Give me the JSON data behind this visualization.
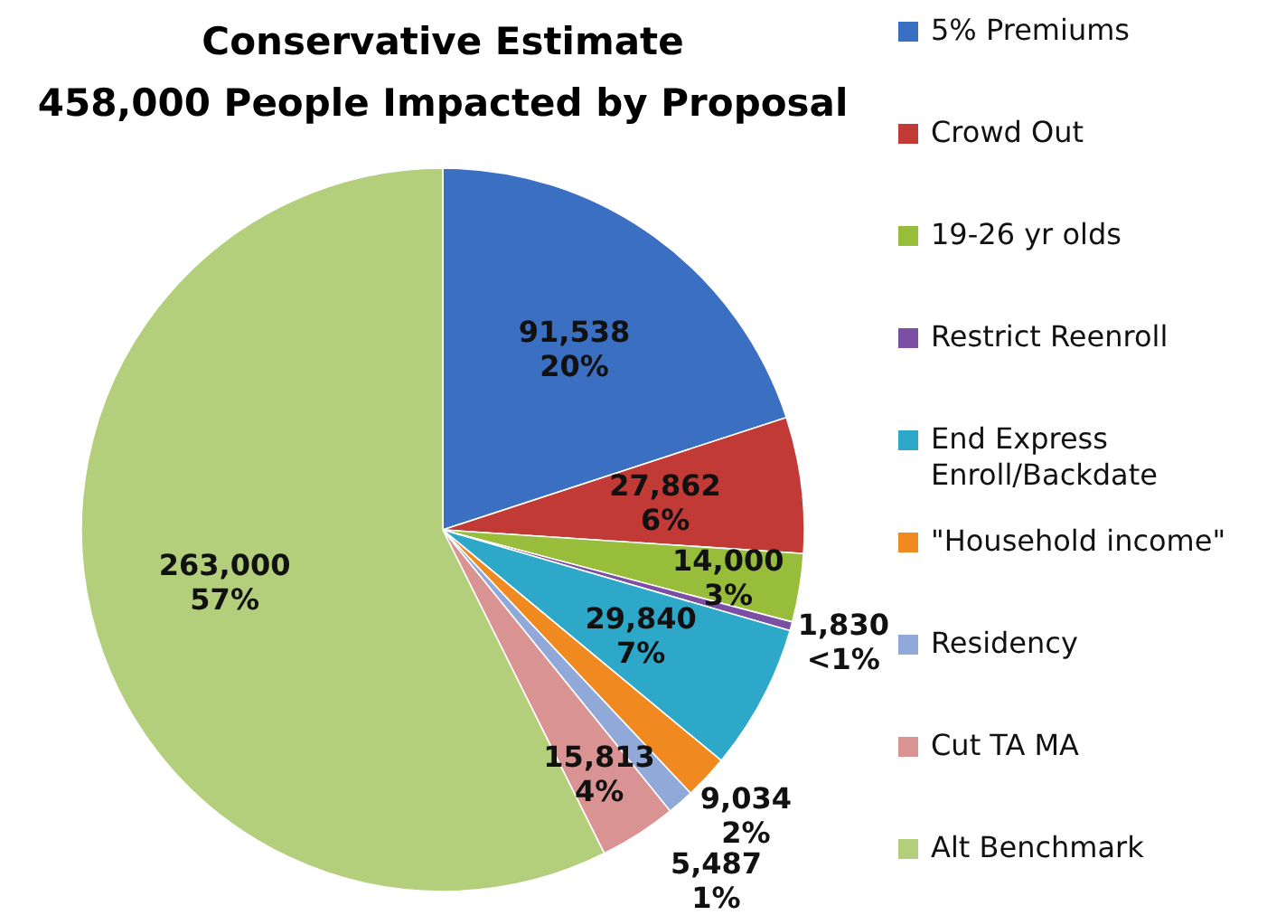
{
  "chart_data": {
    "type": "pie",
    "title": "Conservative Estimate",
    "subtitle": "458,000 People Impacted by Proposal",
    "categories": [
      "5% Premiums",
      "Crowd Out",
      "19-26 yr olds",
      "Restrict Reenroll",
      "End Express Enroll/Backdate",
      "\"Household income\"",
      "Residency",
      "Cut TA MA",
      "Alt Benchmark"
    ],
    "values": [
      91538,
      27862,
      14000,
      1830,
      29840,
      9034,
      5487,
      15813,
      263000
    ],
    "value_labels": [
      "91,538\n20%",
      "27,862\n6%",
      "14,000\n3%",
      "1,830\n<1%",
      "29,840\n7%",
      "9,034\n2%",
      "5,487\n1%",
      "15,813\n4%",
      "263,000\n57%"
    ],
    "colors": [
      "#3b6fc2",
      "#c23a35",
      "#98bd3a",
      "#7b4fa3",
      "#2ea8c9",
      "#f0891f",
      "#90a9d8",
      "#d99392",
      "#b3cf7c"
    ],
    "legend": "right"
  }
}
